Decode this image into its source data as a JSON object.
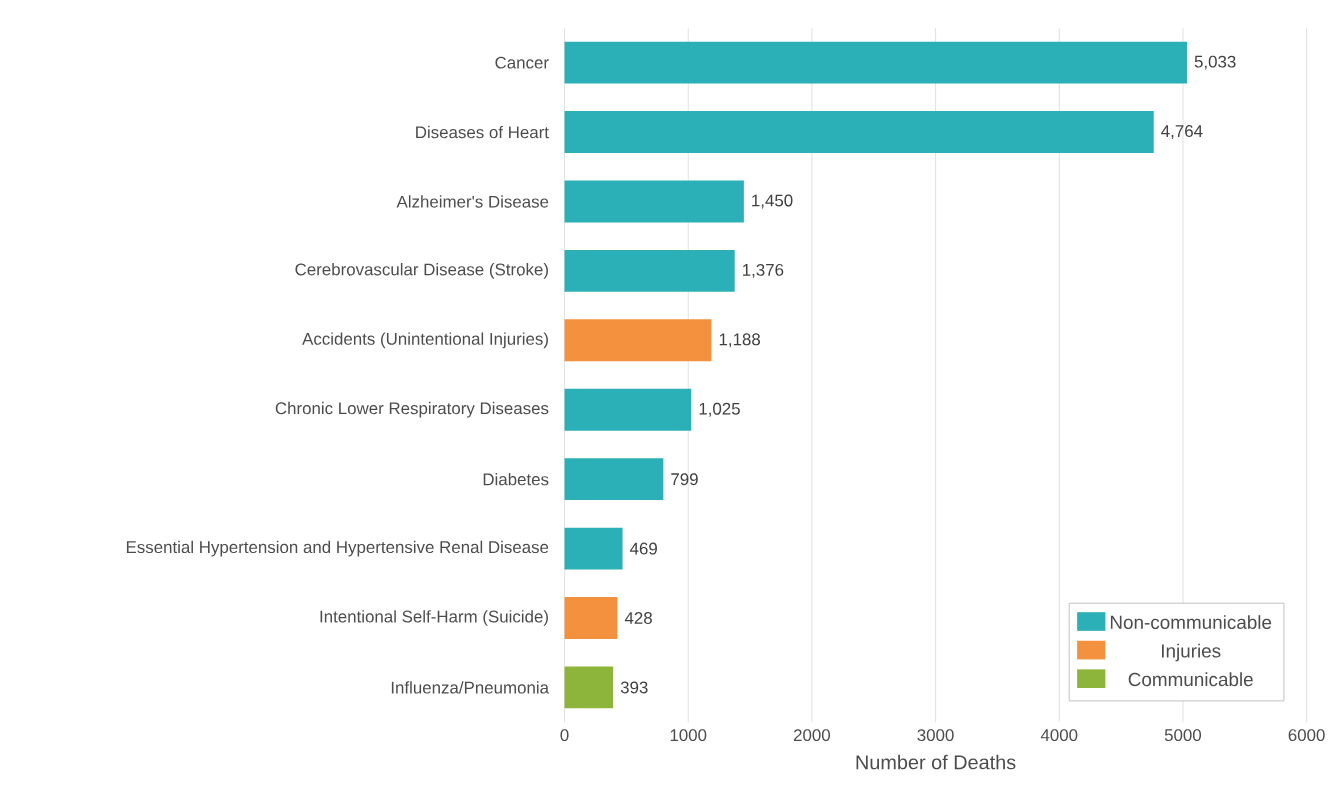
{
  "chart_data": {
    "type": "bar",
    "orientation": "horizontal",
    "xlabel": "Number of Deaths",
    "categories": [
      "Cancer",
      "Diseases of Heart",
      "Alzheimer's Disease",
      "Cerebrovascular Disease (Stroke)",
      "Accidents (Unintentional Injuries)",
      "Chronic Lower Respiratory Diseases",
      "Diabetes",
      "Essential Hypertension and Hypertensive Renal Disease",
      "Intentional Self-Harm (Suicide)",
      "Influenza/Pneumonia"
    ],
    "series": [
      {
        "name": "Non-communicable",
        "color": "#2bb0b8",
        "values": [
          5033,
          4764,
          1450,
          1376,
          null,
          1025,
          799,
          469,
          null,
          null
        ],
        "value_labels": [
          "5,033",
          "4,764",
          "1,450",
          "1,376",
          null,
          "1,025",
          "799",
          "469",
          null,
          null
        ]
      },
      {
        "name": "Injuries",
        "color": "#f4913f",
        "values": [
          null,
          null,
          null,
          null,
          1188,
          null,
          null,
          null,
          428,
          null
        ],
        "value_labels": [
          null,
          null,
          null,
          null,
          "1,188",
          null,
          null,
          null,
          "428",
          null
        ]
      },
      {
        "name": "Communicable",
        "color": "#8db53c",
        "values": [
          null,
          null,
          null,
          null,
          null,
          null,
          null,
          null,
          null,
          393
        ],
        "value_labels": [
          null,
          null,
          null,
          null,
          null,
          null,
          null,
          null,
          null,
          "393"
        ]
      }
    ],
    "xlim": [
      0,
      6000
    ],
    "xticks": [
      0,
      1000,
      2000,
      3000,
      4000,
      5000,
      6000
    ],
    "grid": "x",
    "legend": "bottom right"
  }
}
